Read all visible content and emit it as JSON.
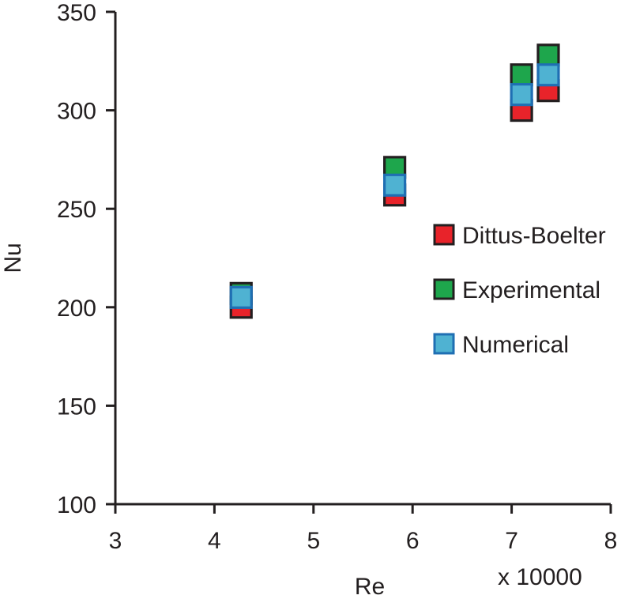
{
  "chart_data": {
    "type": "scatter",
    "xlabel": "Re",
    "x_multiplier_label": "x 10000",
    "ylabel": "Nu",
    "xlim": [
      3,
      8
    ],
    "ylim": [
      100,
      350
    ],
    "x_ticks": [
      3,
      4,
      5,
      6,
      7,
      8
    ],
    "y_ticks": [
      100,
      150,
      200,
      250,
      300,
      350
    ],
    "grid": false,
    "legend_position": "right",
    "series": [
      {
        "name": "Dittus-Boelter",
        "color": "#e8232a",
        "points": [
          {
            "x": 4.27,
            "y": 200
          },
          {
            "x": 5.82,
            "y": 257
          },
          {
            "x": 7.1,
            "y": 300
          },
          {
            "x": 7.37,
            "y": 310
          }
        ]
      },
      {
        "name": "Experimental",
        "color": "#1ea64c",
        "points": [
          {
            "x": 4.27,
            "y": 207
          },
          {
            "x": 5.82,
            "y": 271
          },
          {
            "x": 7.1,
            "y": 318
          },
          {
            "x": 7.37,
            "y": 328
          }
        ]
      },
      {
        "name": "Numerical",
        "color": "#4fb2d2",
        "points": [
          {
            "x": 4.27,
            "y": 205
          },
          {
            "x": 5.82,
            "y": 262
          },
          {
            "x": 7.1,
            "y": 308
          },
          {
            "x": 7.37,
            "y": 318
          }
        ]
      }
    ]
  }
}
